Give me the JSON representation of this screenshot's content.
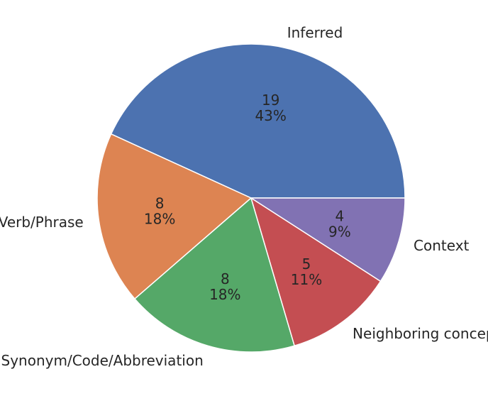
{
  "chart_data": {
    "type": "pie",
    "categories": [
      "Inferred",
      "Verb/Phrase",
      "Synonym/Code/Abbreviation",
      "Neighboring concept",
      "Context"
    ],
    "values": [
      19,
      8,
      8,
      5,
      4
    ],
    "percent_labels": [
      "43%",
      "18%",
      "18%",
      "11%",
      "9%"
    ],
    "colors": [
      "#4c72b0",
      "#dd8452",
      "#55a868",
      "#c44e52",
      "#8172b3"
    ],
    "start_angle_deg": 0,
    "direction": "counterclockwise",
    "title": "",
    "legend": "none"
  }
}
